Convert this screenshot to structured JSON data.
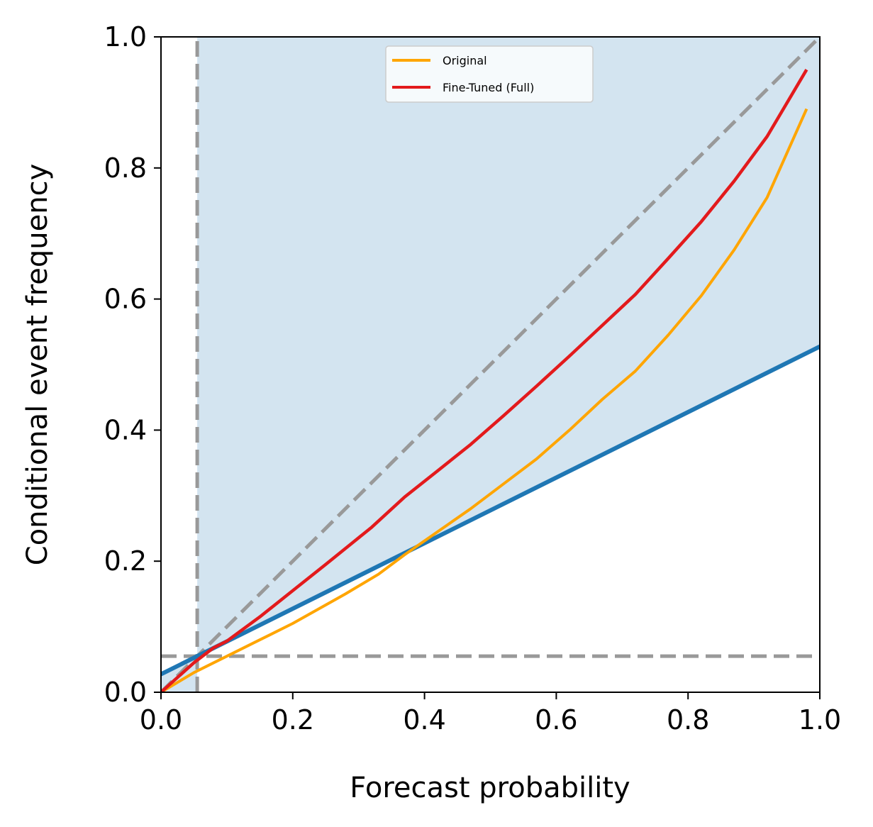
{
  "chart_data": {
    "type": "line",
    "title": "",
    "xlabel": "Forecast probability",
    "ylabel": "Conditional event frequency",
    "xlim": [
      0.0,
      1.0
    ],
    "ylim": [
      0.0,
      1.0
    ],
    "x_ticks": [
      "0.0",
      "0.2",
      "0.4",
      "0.6",
      "0.8",
      "1.0"
    ],
    "y_ticks": [
      "0.0",
      "0.2",
      "0.4",
      "0.6",
      "0.8",
      "1.0"
    ],
    "grid": false,
    "legend_position": "top-center",
    "climatology": 0.055,
    "shaded_region_color": "#d3e4f0",
    "no_skill_line": {
      "x": [
        0.0,
        1.0
      ],
      "y": [
        0.0275,
        0.5275
      ],
      "color": "#1f77b4"
    },
    "reference_lines_color": "#999999",
    "series": [
      {
        "name": "Original",
        "color": "#ffa500",
        "x": [
          0.0,
          0.05,
          0.1,
          0.15,
          0.2,
          0.28,
          0.33,
          0.37,
          0.42,
          0.47,
          0.52,
          0.57,
          0.62,
          0.67,
          0.72,
          0.77,
          0.82,
          0.87,
          0.92,
          0.98
        ],
        "y": [
          0.0,
          0.03,
          0.055,
          0.08,
          0.105,
          0.15,
          0.18,
          0.21,
          0.245,
          0.28,
          0.318,
          0.356,
          0.4,
          0.447,
          0.49,
          0.545,
          0.605,
          0.675,
          0.755,
          0.89
        ]
      },
      {
        "name": "Fine-Tuned (Full)",
        "color": "#e31a1c",
        "x": [
          0.0,
          0.05,
          0.08,
          0.1,
          0.15,
          0.2,
          0.25,
          0.32,
          0.37,
          0.42,
          0.47,
          0.52,
          0.57,
          0.62,
          0.67,
          0.72,
          0.77,
          0.82,
          0.87,
          0.92,
          0.98
        ],
        "y": [
          0.0,
          0.045,
          0.068,
          0.078,
          0.115,
          0.155,
          0.195,
          0.252,
          0.298,
          0.338,
          0.378,
          0.422,
          0.467,
          0.513,
          0.56,
          0.607,
          0.662,
          0.718,
          0.78,
          0.848,
          0.95
        ]
      }
    ]
  }
}
